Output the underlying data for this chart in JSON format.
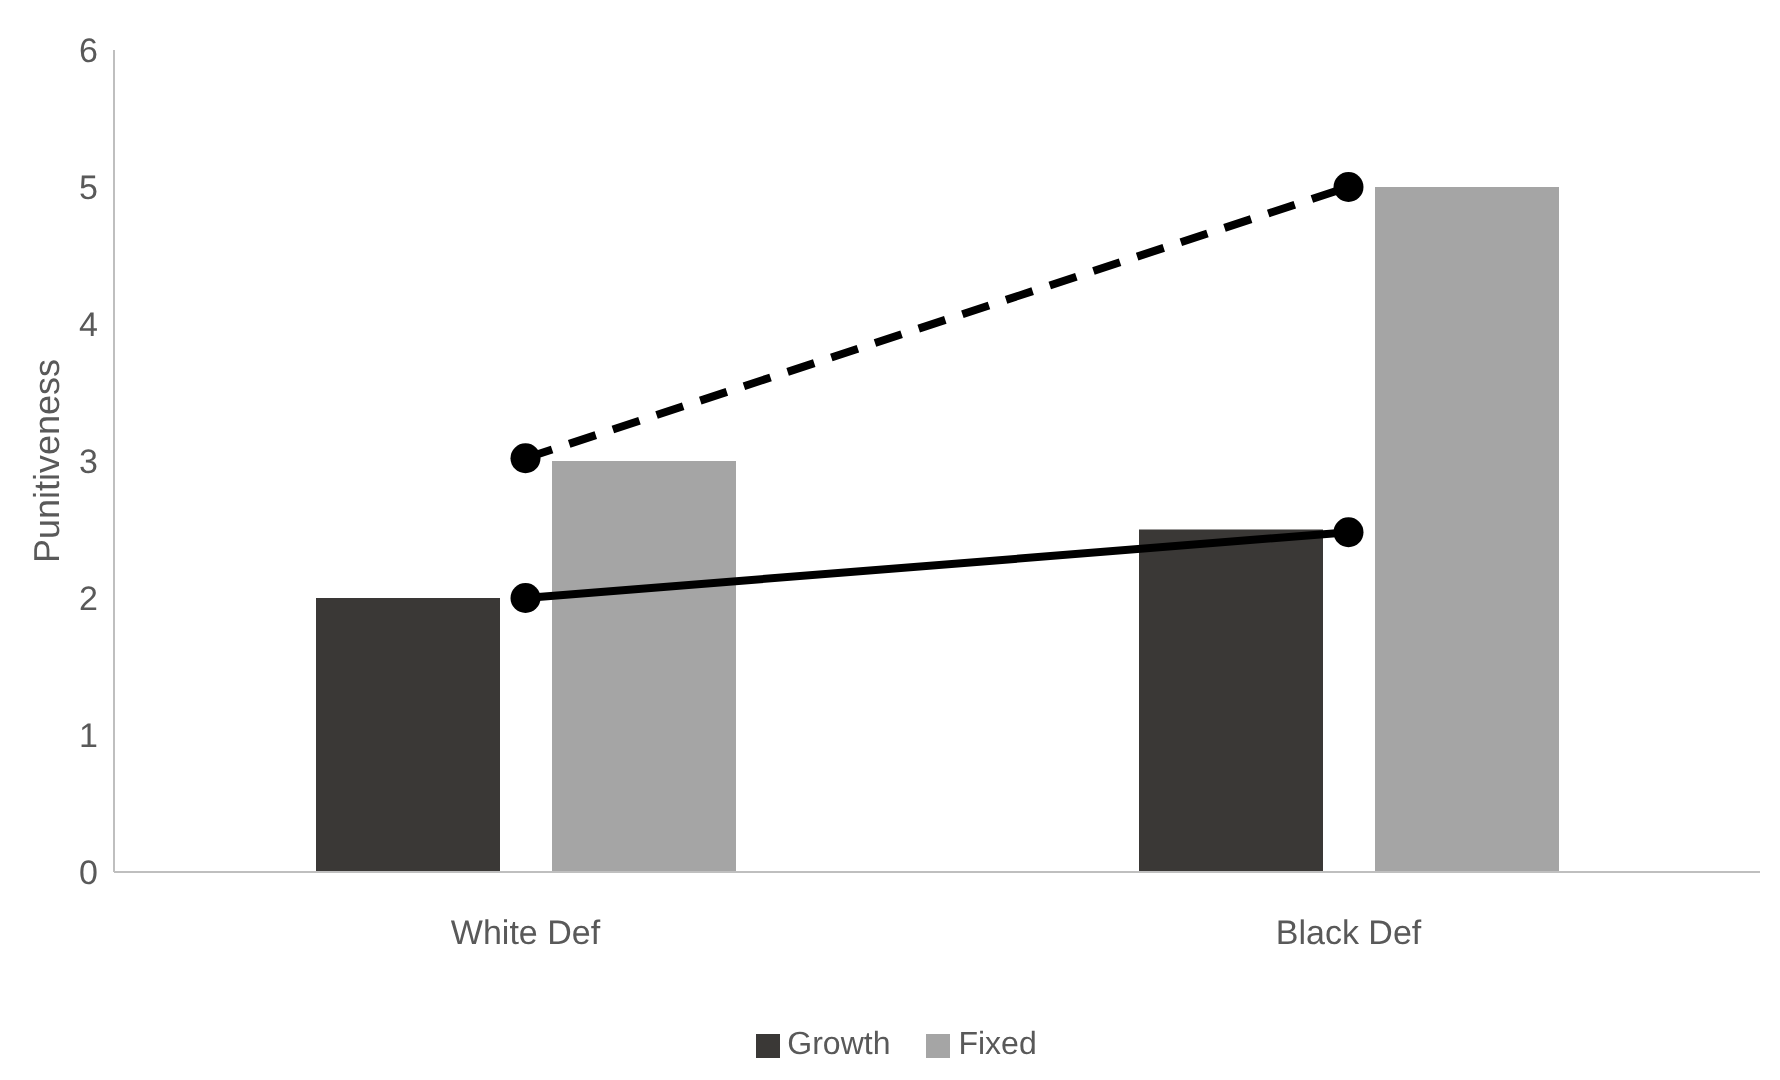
{
  "chart_data": {
    "type": "bar",
    "ylabel": "Punitiveness",
    "categories": [
      "White Def",
      "Black Def"
    ],
    "ylim": [
      0,
      6
    ],
    "yticks": [
      0,
      1,
      2,
      3,
      4,
      5,
      6
    ],
    "grid": false,
    "legend": "bottom",
    "marker": "circle",
    "series": [
      {
        "name": "Growth",
        "color": "#3a3836",
        "values": [
          2,
          2.5
        ]
      },
      {
        "name": "Fixed",
        "color": "#a5a5a5",
        "values": [
          3,
          5
        ]
      },
      {
        "type": "line",
        "color": "#000000",
        "line_style": "solid",
        "values": [
          2,
          2.48
        ]
      },
      {
        "type": "line",
        "color": "#000000",
        "line_style": "dashed",
        "values": [
          3.02,
          5
        ]
      }
    ]
  }
}
